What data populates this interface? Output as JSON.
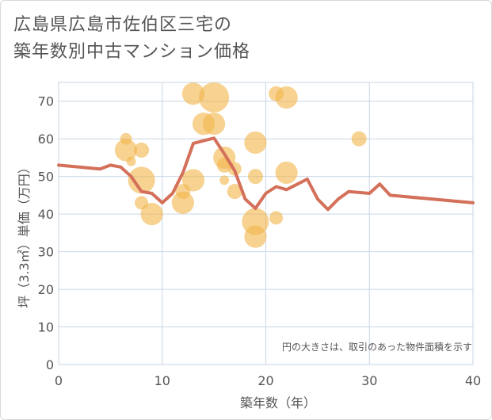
{
  "title_lines": [
    "広島県広島市佐伯区三宅の",
    "築年数別中古マンション価格"
  ],
  "chart_data": {
    "type": "scatter+line",
    "xlabel": "築年数（年）",
    "ylabel": "坪（3.3㎡）単価（万円）",
    "xlim": [
      0,
      40
    ],
    "ylim": [
      0,
      75
    ],
    "xticks": [
      0,
      10,
      20,
      30,
      40
    ],
    "yticks": [
      0,
      10,
      20,
      30,
      40,
      50,
      60,
      70
    ],
    "grid": true,
    "annotation": "円の大きさは、取引のあった物件面積を示す",
    "colors": {
      "bubble": "#f2b64e",
      "line": "#d4705a",
      "grid": "#c8d6e6",
      "text": "#555555"
    },
    "average_line": [
      {
        "x": 0,
        "y": 53
      },
      {
        "x": 4,
        "y": 52
      },
      {
        "x": 5,
        "y": 53
      },
      {
        "x": 6,
        "y": 52.5
      },
      {
        "x": 7,
        "y": 50
      },
      {
        "x": 8,
        "y": 46
      },
      {
        "x": 9,
        "y": 45.5
      },
      {
        "x": 10,
        "y": 43
      },
      {
        "x": 11,
        "y": 45.5
      },
      {
        "x": 12,
        "y": 51
      },
      {
        "x": 13,
        "y": 58.8
      },
      {
        "x": 15,
        "y": 60.2
      },
      {
        "x": 16,
        "y": 56
      },
      {
        "x": 17,
        "y": 51.5
      },
      {
        "x": 18,
        "y": 44
      },
      {
        "x": 19,
        "y": 41.5
      },
      {
        "x": 20,
        "y": 45.5
      },
      {
        "x": 21,
        "y": 47.3
      },
      {
        "x": 22,
        "y": 46.5
      },
      {
        "x": 24,
        "y": 49.3
      },
      {
        "x": 25,
        "y": 44
      },
      {
        "x": 26,
        "y": 41.2
      },
      {
        "x": 27,
        "y": 44
      },
      {
        "x": 28,
        "y": 46
      },
      {
        "x": 30,
        "y": 45.5
      },
      {
        "x": 31,
        "y": 48
      },
      {
        "x": 32,
        "y": 45
      },
      {
        "x": 40,
        "y": 43
      }
    ],
    "bubbles": [
      {
        "x": 6.5,
        "y": 60,
        "size": 3
      },
      {
        "x": 6.5,
        "y": 57,
        "size": 11
      },
      {
        "x": 7,
        "y": 54,
        "size": 2
      },
      {
        "x": 8,
        "y": 57,
        "size": 5
      },
      {
        "x": 8,
        "y": 49,
        "size": 16
      },
      {
        "x": 8,
        "y": 43,
        "size": 4
      },
      {
        "x": 9,
        "y": 40,
        "size": 11
      },
      {
        "x": 12,
        "y": 46,
        "size": 5
      },
      {
        "x": 12,
        "y": 43,
        "size": 11
      },
      {
        "x": 13,
        "y": 72,
        "size": 11
      },
      {
        "x": 13,
        "y": 49,
        "size": 11
      },
      {
        "x": 14,
        "y": 64,
        "size": 11
      },
      {
        "x": 15,
        "y": 71,
        "size": 20
      },
      {
        "x": 15,
        "y": 64,
        "size": 11
      },
      {
        "x": 16,
        "y": 55,
        "size": 11
      },
      {
        "x": 16,
        "y": 53,
        "size": 5
      },
      {
        "x": 16,
        "y": 49,
        "size": 2
      },
      {
        "x": 17,
        "y": 52,
        "size": 4
      },
      {
        "x": 17,
        "y": 46,
        "size": 5
      },
      {
        "x": 19,
        "y": 59,
        "size": 11
      },
      {
        "x": 19,
        "y": 50,
        "size": 5
      },
      {
        "x": 19,
        "y": 38,
        "size": 16
      },
      {
        "x": 19,
        "y": 34,
        "size": 11
      },
      {
        "x": 21,
        "y": 72,
        "size": 5
      },
      {
        "x": 21,
        "y": 39,
        "size": 4
      },
      {
        "x": 22,
        "y": 71,
        "size": 11
      },
      {
        "x": 22,
        "y": 51,
        "size": 11
      },
      {
        "x": 29,
        "y": 60,
        "size": 5
      }
    ]
  }
}
